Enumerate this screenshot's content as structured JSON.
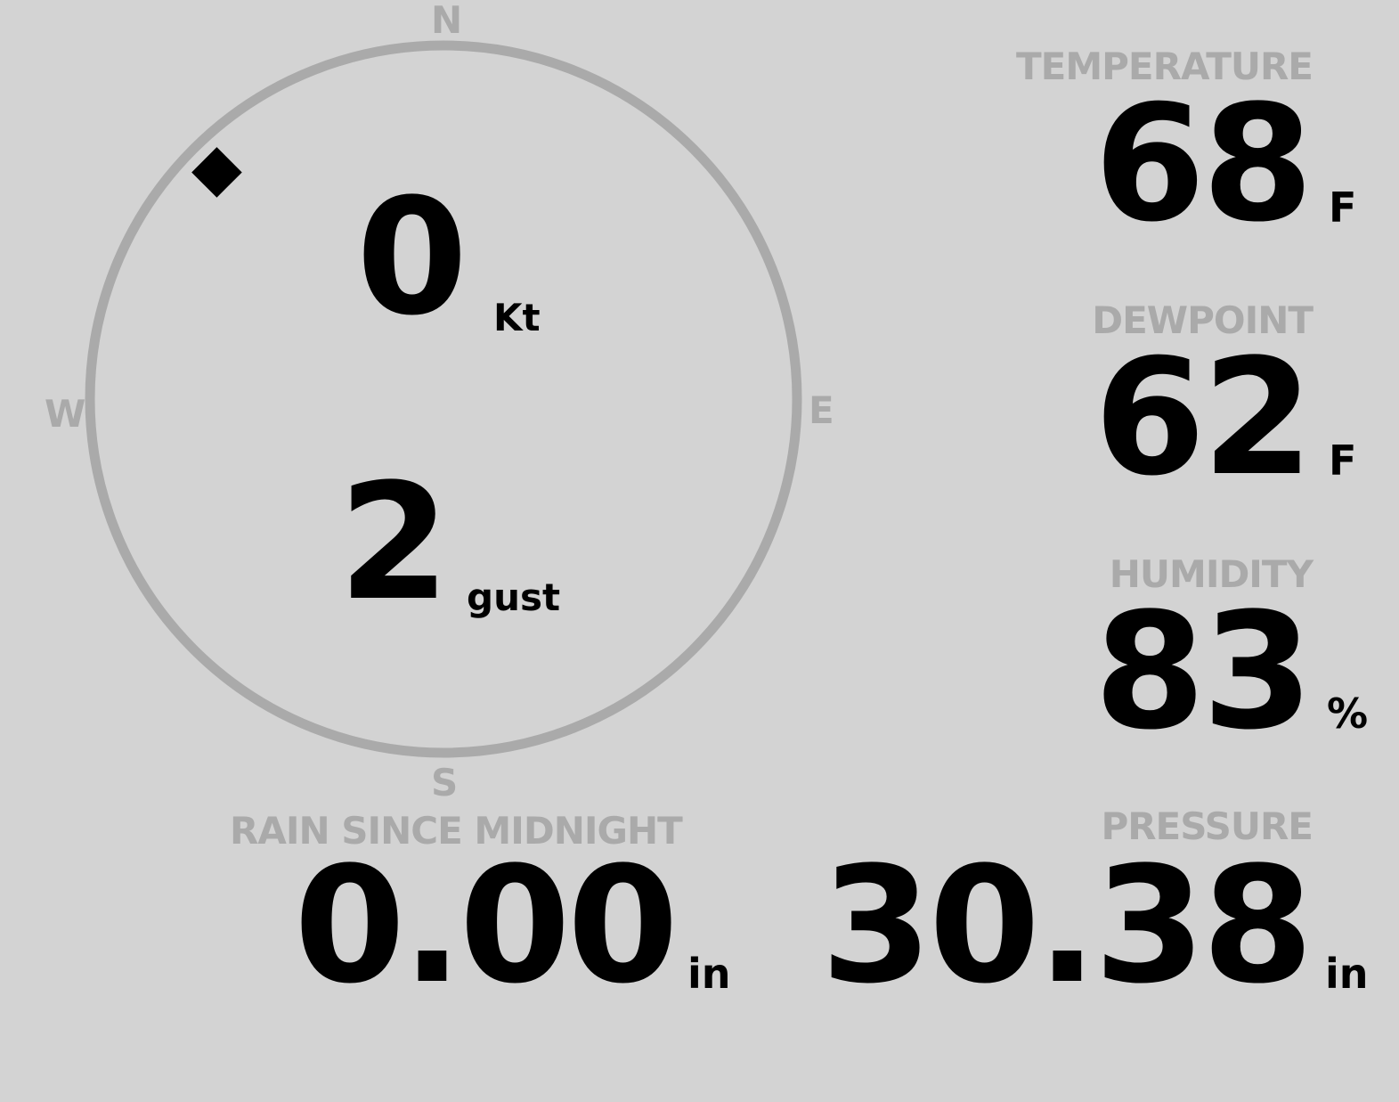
{
  "wind": {
    "speed": "0",
    "speed_unit": "Kt",
    "gust": "2",
    "gust_unit": "gust",
    "direction_deg": 315,
    "compass": {
      "n": "N",
      "e": "E",
      "s": "S",
      "w": "W"
    },
    "ring_color": "#aaaaaa"
  },
  "temperature": {
    "label": "TEMPERATURE",
    "value": "68",
    "unit": "F"
  },
  "dewpoint": {
    "label": "DEWPOINT",
    "value": "62",
    "unit": "F"
  },
  "humidity": {
    "label": "HUMIDITY",
    "value": "83",
    "unit": "%"
  },
  "rain": {
    "label": "RAIN SINCE MIDNIGHT",
    "value": "0.00",
    "unit": "in"
  },
  "pressure": {
    "label": "PRESSURE",
    "value": "30.38",
    "unit": "in"
  },
  "colors": {
    "background": "#d3d3d3",
    "label": "#aaaaaa",
    "value": "#000000"
  }
}
